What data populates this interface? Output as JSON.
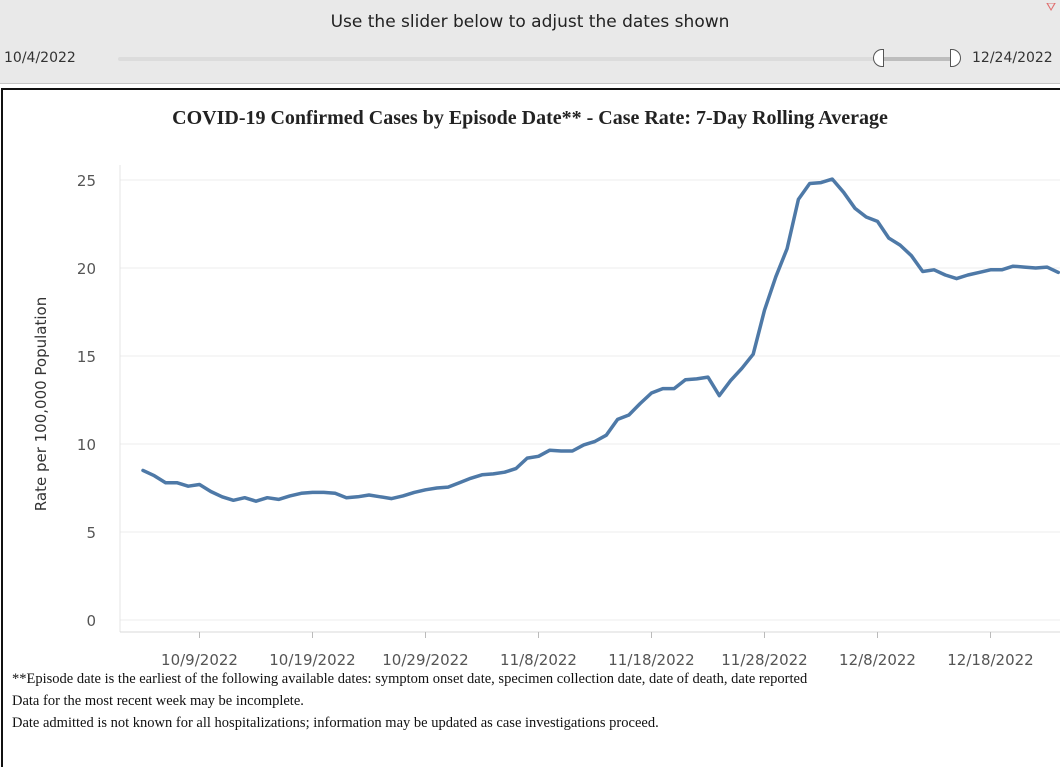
{
  "filter": {
    "title": "Use the slider below to adjust the dates shown",
    "start_label": "10/4/2022",
    "end_label": "12/24/2022",
    "filter_icon": "filter-icon"
  },
  "chart_data": {
    "type": "line",
    "title": "COVID-19  Confirmed Cases by Episode Date** - Case Rate: 7-Day Rolling Average",
    "ylabel": "Rate per 100,000 Population",
    "xlabel": "",
    "ylim": [
      0,
      25
    ],
    "y_ticks": [
      "0",
      "5",
      "10",
      "15",
      "20",
      "25"
    ],
    "x_tick_dates": [
      "10/9/2022",
      "10/19/2022",
      "10/29/2022",
      "11/8/2022",
      "11/18/2022",
      "11/28/2022",
      "12/8/2022",
      "12/18/2022"
    ],
    "grid": "horizontal",
    "line_color": "#4e79a7",
    "series": [
      {
        "x": [
          "10/4/2022",
          "10/5/2022",
          "10/6/2022",
          "10/7/2022",
          "10/8/2022",
          "10/9/2022",
          "10/10/2022",
          "10/11/2022",
          "10/12/2022",
          "10/13/2022",
          "10/14/2022",
          "10/15/2022",
          "10/16/2022",
          "10/17/2022",
          "10/18/2022",
          "10/19/2022",
          "10/20/2022",
          "10/21/2022",
          "10/22/2022",
          "10/23/2022",
          "10/24/2022",
          "10/25/2022",
          "10/26/2022",
          "10/27/2022",
          "10/28/2022",
          "10/29/2022",
          "10/30/2022",
          "10/31/2022",
          "11/1/2022",
          "11/2/2022",
          "11/3/2022",
          "11/4/2022",
          "11/5/2022",
          "11/6/2022",
          "11/7/2022",
          "11/8/2022",
          "11/9/2022",
          "11/10/2022",
          "11/11/2022",
          "11/12/2022",
          "11/13/2022",
          "11/14/2022",
          "11/15/2022",
          "11/16/2022",
          "11/17/2022",
          "11/18/2022",
          "11/19/2022",
          "11/20/2022",
          "11/21/2022",
          "11/22/2022",
          "11/23/2022",
          "11/24/2022",
          "11/25/2022",
          "11/26/2022",
          "11/27/2022",
          "11/28/2022",
          "11/29/2022",
          "11/30/2022",
          "12/1/2022",
          "12/2/2022",
          "12/3/2022",
          "12/4/2022",
          "12/5/2022",
          "12/6/2022",
          "12/7/2022",
          "12/8/2022",
          "12/9/2022",
          "12/10/2022",
          "12/11/2022",
          "12/12/2022",
          "12/13/2022",
          "12/14/2022",
          "12/15/2022",
          "12/16/2022",
          "12/17/2022",
          "12/18/2022",
          "12/19/2022",
          "12/20/2022",
          "12/21/2022",
          "12/22/2022",
          "12/23/2022",
          "12/24/2022"
        ],
        "values": [
          8.5,
          8.2,
          7.8,
          7.8,
          7.6,
          7.7,
          7.3,
          7.0,
          6.8,
          6.95,
          6.75,
          6.95,
          6.85,
          7.05,
          7.2,
          7.25,
          7.25,
          7.2,
          6.95,
          7.0,
          7.1,
          7.0,
          6.9,
          7.05,
          7.25,
          7.4,
          7.5,
          7.55,
          7.8,
          8.05,
          8.25,
          8.3,
          8.4,
          8.6,
          9.2,
          9.3,
          9.65,
          9.6,
          9.6,
          9.95,
          10.15,
          10.5,
          11.4,
          11.65,
          12.3,
          12.9,
          13.15,
          13.15,
          13.65,
          13.7,
          13.8,
          12.75,
          13.6,
          14.3,
          15.1,
          17.6,
          19.5,
          21.1,
          23.9,
          24.8,
          24.85,
          25.05,
          24.3,
          23.4,
          22.9,
          22.65,
          21.7,
          21.3,
          20.7,
          19.8,
          19.9,
          19.6,
          19.4,
          19.6,
          19.75,
          19.9,
          19.9,
          20.1,
          20.05,
          20.0,
          20.05,
          19.75
        ]
      }
    ]
  },
  "footnotes": [
    "**Episode date is the earliest of the following available dates: symptom onset date, specimen collection date, date of death, date reported",
    "Data for the most recent week may be incomplete.",
    "Date admitted is not known for all hospitalizations; information may be updated as case investigations proceed."
  ]
}
